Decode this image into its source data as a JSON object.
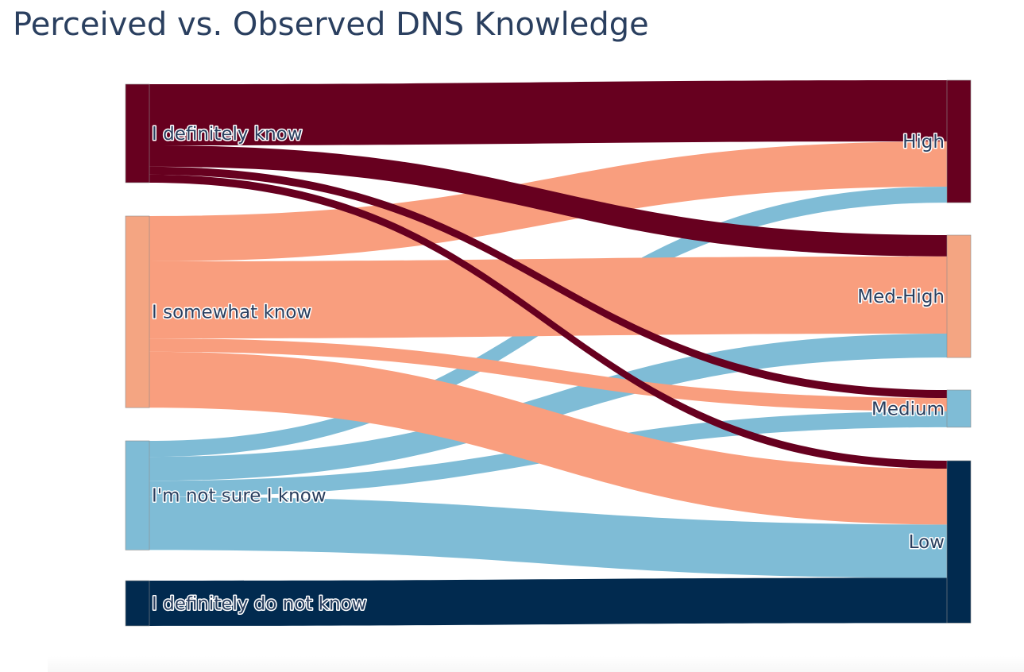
{
  "title": "Perceived vs. Observed DNS Knowledge",
  "chart_data": {
    "type": "sankey",
    "title": "Perceived vs. Observed DNS Knowledge",
    "sources": [
      {
        "id": "definitely",
        "label": "I definitely know",
        "color": "#67001f"
      },
      {
        "id": "somewhat",
        "label": "I somewhat know",
        "color": "#f4a582"
      },
      {
        "id": "notsure",
        "label": "I'm not sure I know",
        "color": "#7fbcd6"
      },
      {
        "id": "donot",
        "label": "I definitely do not know",
        "color": "#012a4f"
      }
    ],
    "targets": [
      {
        "id": "high",
        "label": "High",
        "color": "#67001f"
      },
      {
        "id": "medhigh",
        "label": "Med-High",
        "color": "#f4a582"
      },
      {
        "id": "medium",
        "label": "Medium",
        "color": "#7fbcd6"
      },
      {
        "id": "low",
        "label": "Low",
        "color": "#012a4f"
      }
    ],
    "link_colors": {
      "definitely": "#67001f",
      "somewhat": "#f99e7e",
      "notsure": "#7fbcd6",
      "donot": "#012a4f"
    },
    "links": [
      {
        "source": "definitely",
        "target": "high",
        "value": 23
      },
      {
        "source": "definitely",
        "target": "medhigh",
        "value": 8
      },
      {
        "source": "definitely",
        "target": "medium",
        "value": 3
      },
      {
        "source": "definitely",
        "target": "low",
        "value": 3
      },
      {
        "source": "somewhat",
        "target": "high",
        "value": 17
      },
      {
        "source": "somewhat",
        "target": "medhigh",
        "value": 29
      },
      {
        "source": "somewhat",
        "target": "medium",
        "value": 5
      },
      {
        "source": "somewhat",
        "target": "low",
        "value": 21
      },
      {
        "source": "notsure",
        "target": "high",
        "value": 6
      },
      {
        "source": "notsure",
        "target": "medhigh",
        "value": 9
      },
      {
        "source": "notsure",
        "target": "medium",
        "value": 6
      },
      {
        "source": "notsure",
        "target": "low",
        "value": 20
      },
      {
        "source": "donot",
        "target": "low",
        "value": 17
      }
    ]
  }
}
